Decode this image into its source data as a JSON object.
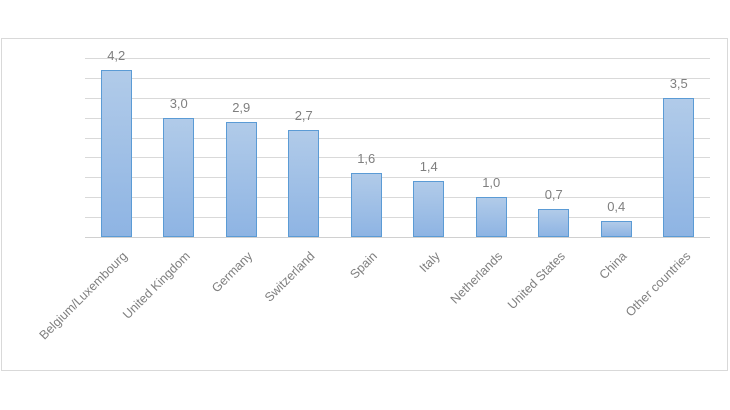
{
  "chart_data": {
    "type": "bar",
    "title": "",
    "xlabel": "",
    "ylabel": "",
    "categories": [
      "Belgium/Luxembourg",
      "United Kingdom",
      "Germany",
      "Switzerland",
      "Spain",
      "Italy",
      "Netherlands",
      "United States",
      "China",
      "Other countries"
    ],
    "values": [
      4.2,
      3.0,
      2.9,
      2.7,
      1.6,
      1.4,
      1.0,
      0.7,
      0.4,
      3.5
    ],
    "value_labels": [
      "4,2",
      "3,0",
      "2,9",
      "2,7",
      "1,6",
      "1,4",
      "1,0",
      "0,7",
      "0,4",
      "3,5"
    ],
    "ylim": [
      0,
      4.5
    ],
    "grid_step": 0.5,
    "grid": true,
    "y_axis_labels_visible": false,
    "legend": null,
    "bar_color": "#5b9bd5",
    "bar_fill_top": "#b1cbe9",
    "bar_fill_bottom": "#8eb4e3"
  }
}
